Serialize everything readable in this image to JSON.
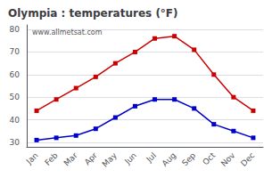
{
  "chart_data": {
    "type": "line",
    "title": "Olympia : temperatures (°F)",
    "categories": [
      "Jan",
      "Feb",
      "Mar",
      "Apr",
      "May",
      "Jun",
      "Jul",
      "Aug",
      "Sep",
      "Oct",
      "Nov",
      "Dec"
    ],
    "series": [
      {
        "color": "#cc0000",
        "values": [
          44,
          49,
          54,
          59,
          65,
          70,
          76,
          77,
          71,
          60,
          50,
          44
        ]
      },
      {
        "color": "#0000cc",
        "values": [
          31,
          32,
          33,
          36,
          41,
          46,
          49,
          49,
          45,
          38,
          35,
          32
        ]
      }
    ],
    "marker": "square",
    "ylim": [
      28,
      82
    ],
    "yticks": [
      30,
      40,
      50,
      60,
      70,
      80
    ],
    "grid": true,
    "annotations": [
      "www.allmetsat.com"
    ]
  }
}
